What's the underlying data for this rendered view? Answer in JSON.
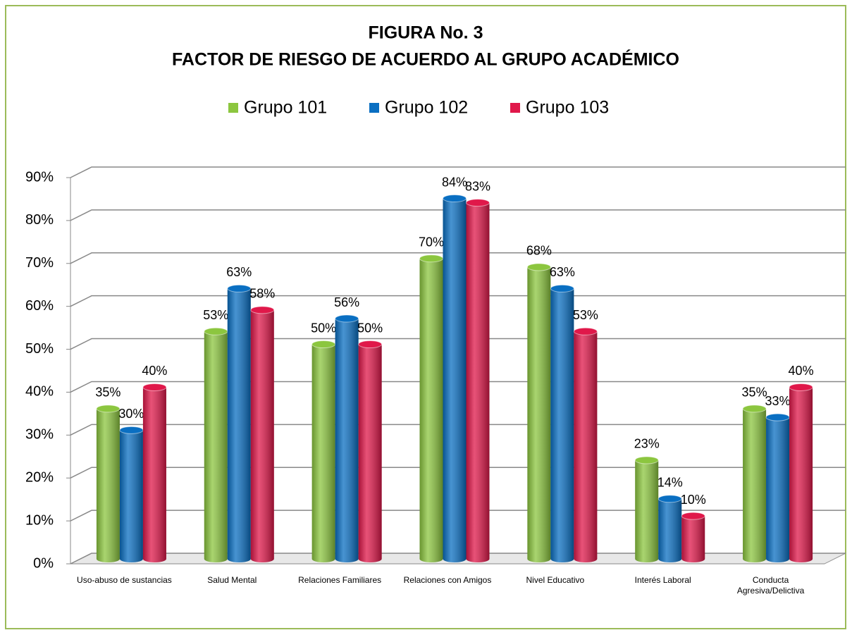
{
  "chart_data": {
    "type": "bar3d",
    "title": "FIGURA No. 3",
    "subtitle": "FACTOR DE RIESGO DE ACUERDO AL GRUPO ACADÉMICO",
    "categories": [
      "Uso-abuso de sustancias",
      "Salud Mental",
      "Relaciones Familiares",
      "Relaciones con Amigos",
      "Nivel Educativo",
      "Interés Laboral",
      "Conducta Agresiva/Delictiva"
    ],
    "series": [
      {
        "name": "Grupo 101",
        "color": "#8cc63f",
        "values": [
          35,
          53,
          50,
          70,
          68,
          23,
          35
        ],
        "value_labels": [
          "35%",
          "53%",
          "50%",
          "70%",
          "68%",
          "23%",
          "35%"
        ]
      },
      {
        "name": "Grupo 102",
        "color": "#0a6fc2",
        "values": [
          30,
          63,
          56,
          84,
          63,
          14,
          33
        ],
        "value_labels": [
          "30%",
          "63%",
          "56%",
          "84%",
          "63%",
          "14%",
          "33%"
        ]
      },
      {
        "name": "Grupo 103",
        "color": "#e0184a",
        "values": [
          40,
          58,
          50,
          83,
          53,
          10,
          40
        ],
        "value_labels": [
          "40%",
          "58%",
          "50%",
          "83%",
          "53%",
          "10%",
          "40%"
        ]
      }
    ],
    "ylim": [
      0,
      90
    ],
    "yticks": [
      {
        "value": 0,
        "label": "0%"
      },
      {
        "value": 10,
        "label": "10%"
      },
      {
        "value": 20,
        "label": "20%"
      },
      {
        "value": 30,
        "label": "30%"
      },
      {
        "value": 40,
        "label": "40%"
      },
      {
        "value": 50,
        "label": "50%"
      },
      {
        "value": 60,
        "label": "60%"
      },
      {
        "value": 70,
        "label": "70%"
      },
      {
        "value": 80,
        "label": "80%"
      },
      {
        "value": 90,
        "label": "90%"
      }
    ],
    "grid": true,
    "legend": "top"
  }
}
